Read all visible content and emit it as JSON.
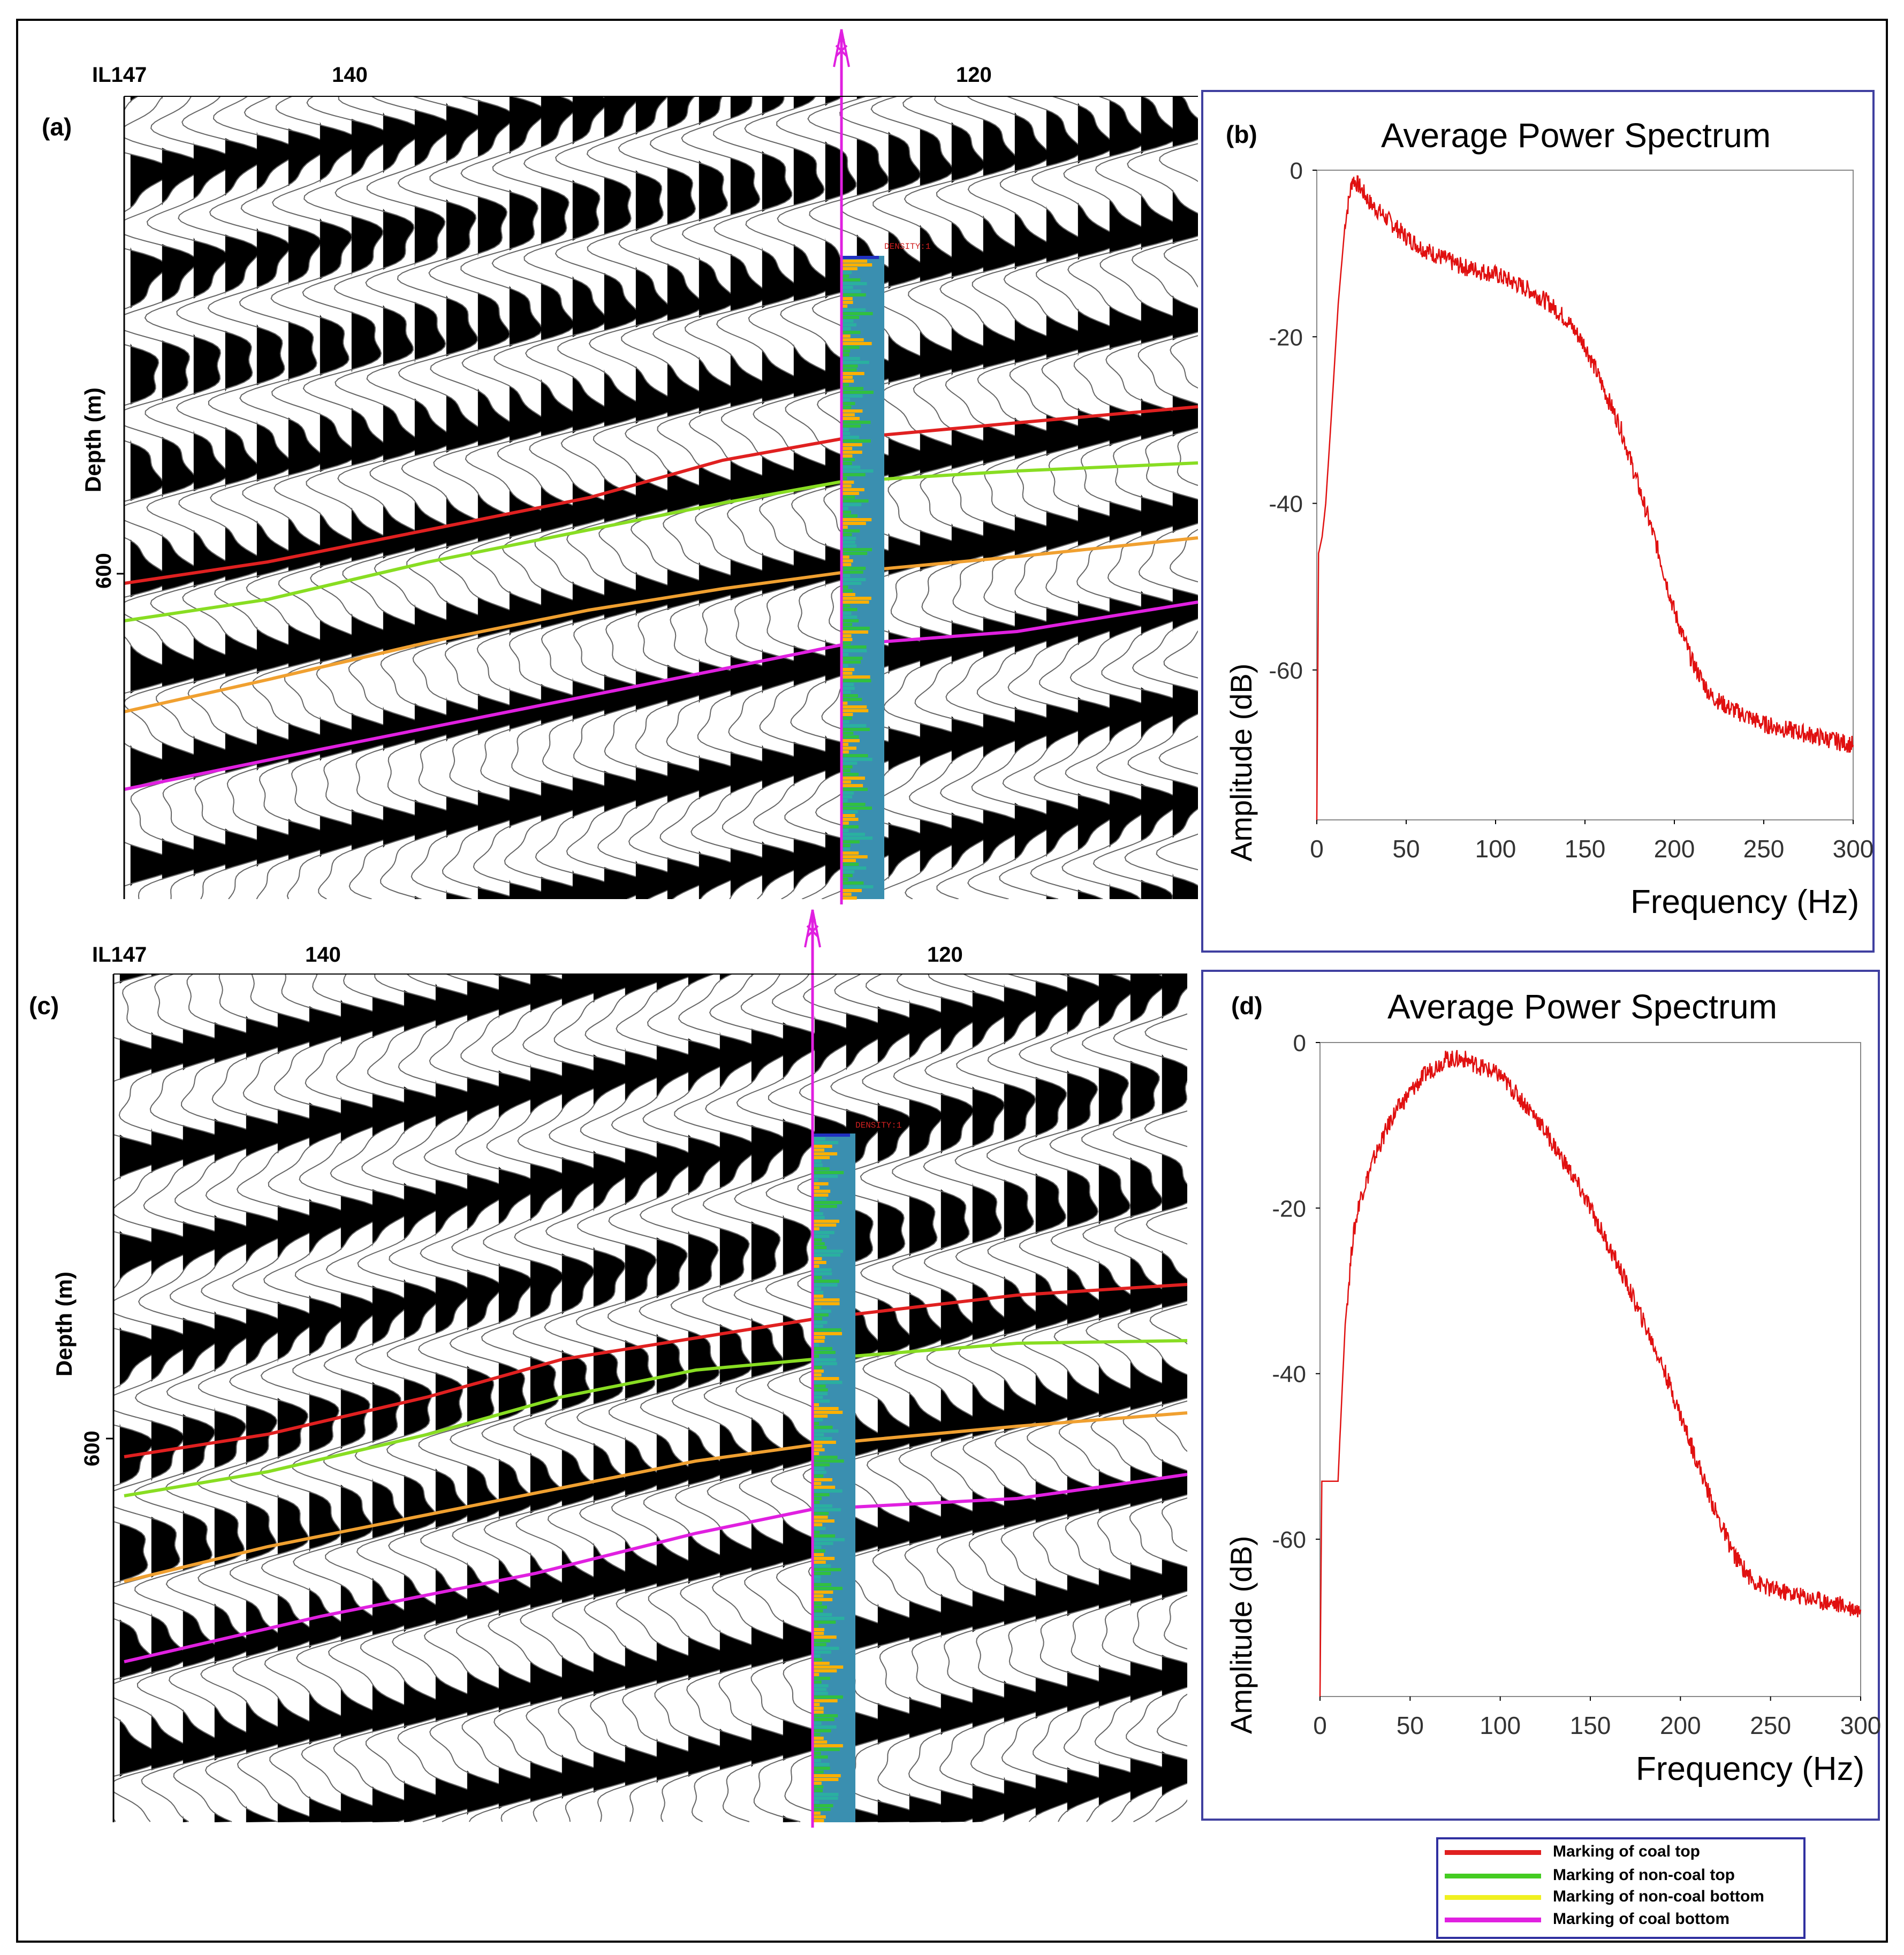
{
  "figure": {
    "panels": {
      "a": {
        "label": "(a)",
        "il_ticks": [
          "IL147",
          "140",
          "120"
        ],
        "ylabel": "Depth (m)",
        "depth_tick": "600",
        "log_tag": "DENSITY:1"
      },
      "c": {
        "label": "(c)",
        "il_ticks": [
          "IL147",
          "140",
          "120"
        ],
        "ylabel": "Depth (m)",
        "depth_tick": "600",
        "log_tag": "DENSITY:1"
      }
    },
    "colors": {
      "coal_top": "#e02020",
      "noncoal_top": "#88dd22",
      "noncoal_bottom": "#f0a030",
      "coal_bottom": "#e020e0",
      "well": "#e020e0",
      "spectrum": "#e01010"
    }
  },
  "chart_data": [
    {
      "type": "line",
      "panel": "(b)",
      "title": "Average Power Spectrum",
      "xlabel": "Frequency (Hz)",
      "ylabel": "Amplitude (dB)",
      "xlim": [
        0,
        300
      ],
      "ylim": [
        -78,
        0
      ],
      "xticks": [
        "0",
        "50",
        "100",
        "150",
        "200",
        "250",
        "300"
      ],
      "yticks": [
        "0",
        "-20",
        "-40",
        "-60"
      ],
      "x": [
        0,
        1,
        3,
        5,
        8,
        12,
        16,
        20,
        24,
        30,
        40,
        50,
        60,
        70,
        80,
        90,
        100,
        110,
        120,
        130,
        140,
        150,
        160,
        170,
        180,
        190,
        200,
        210,
        220,
        230,
        240,
        250,
        260,
        270,
        280,
        290,
        300
      ],
      "y": [
        -78,
        -46,
        -44,
        -40,
        -30,
        -16,
        -6,
        -1,
        -2,
        -4,
        -6,
        -8,
        -9.5,
        -10.5,
        -11.5,
        -12,
        -12.5,
        -13.5,
        -14.5,
        -16,
        -18,
        -21,
        -26,
        -31,
        -38,
        -45,
        -53,
        -59,
        -63,
        -64.5,
        -65.5,
        -66.5,
        -67,
        -67.5,
        -68,
        -68.5,
        -69
      ]
    },
    {
      "type": "line",
      "panel": "(d)",
      "title": "Average Power Spectrum",
      "xlabel": "Frequency (Hz)",
      "ylabel": "Amplitude (dB)",
      "xlim": [
        0,
        300
      ],
      "ylim": [
        -79,
        0
      ],
      "xticks": [
        "0",
        "50",
        "100",
        "150",
        "200",
        "250",
        "300"
      ],
      "yticks": [
        "0",
        "-20",
        "-40",
        "-60"
      ],
      "x": [
        0,
        1,
        3,
        6,
        10,
        11,
        14,
        18,
        22,
        30,
        40,
        50,
        60,
        70,
        80,
        90,
        100,
        110,
        120,
        130,
        140,
        150,
        160,
        170,
        180,
        190,
        200,
        210,
        220,
        230,
        240,
        250,
        260,
        270,
        280,
        290,
        300
      ],
      "y": [
        -79,
        -53,
        -53,
        -53,
        -53,
        -48,
        -34,
        -24,
        -19,
        -14,
        -9,
        -6,
        -3.5,
        -2,
        -2,
        -3,
        -4,
        -6.5,
        -9,
        -12.5,
        -16,
        -20,
        -24.5,
        -29,
        -34,
        -39,
        -45,
        -51,
        -57,
        -62,
        -65,
        -66,
        -66.5,
        -67,
        -67.5,
        -68,
        -68.5
      ]
    }
  ],
  "legend": {
    "items": [
      {
        "label": "Marking of coal top",
        "color": "#e02020"
      },
      {
        "label": "Marking of non-coal top",
        "color": "#44cc22"
      },
      {
        "label": "Marking of non-coal bottom",
        "color": "#f0f020"
      },
      {
        "label": "Marking of coal bottom",
        "color": "#e020e0"
      }
    ]
  }
}
